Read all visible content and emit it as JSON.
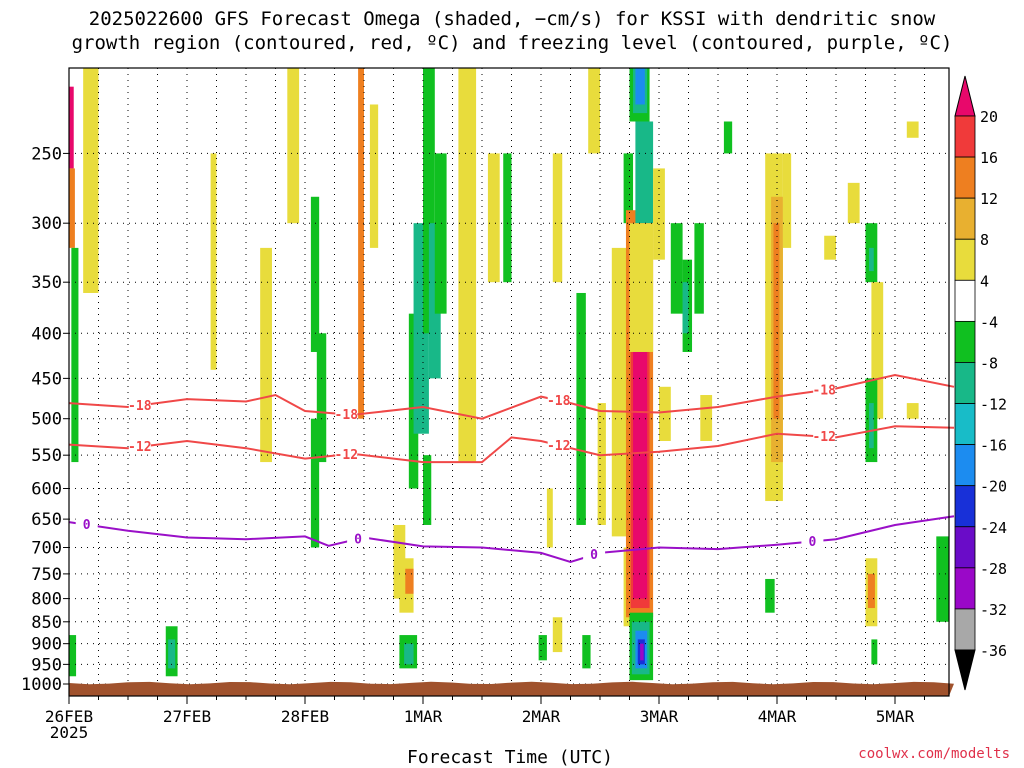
{
  "title": {
    "line1": "2025022600 GFS Forecast Omega (shaded, −cm/s) for KSSI with dendritic snow",
    "line2": "growth region (contoured, red, ºC) and freezing level (contoured, purple, ºC)"
  },
  "x_axis_label": "Forecast Time (UTC)",
  "credit": "coolwx.com/modelts",
  "chart_data": {
    "type": "heatmap",
    "x_start": "2025-02-26 00Z",
    "x_end": "2025-03-05 12Z",
    "x_ticks": [
      {
        "label": "26FEB",
        "sub": "2025",
        "day": 0
      },
      {
        "label": "27FEB",
        "day": 1
      },
      {
        "label": "28FEB",
        "day": 2
      },
      {
        "label": "1MAR",
        "day": 3
      },
      {
        "label": "2MAR",
        "day": 4
      },
      {
        "label": "3MAR",
        "day": 5
      },
      {
        "label": "4MAR",
        "day": 6
      },
      {
        "label": "5MAR",
        "day": 7
      }
    ],
    "y_axis": {
      "label_units": "hPa",
      "scale": "log-pressure",
      "ylim": [
        1000,
        200
      ],
      "ticks": [
        250,
        300,
        350,
        400,
        450,
        500,
        550,
        600,
        650,
        700,
        750,
        800,
        850,
        900,
        950,
        1000
      ]
    },
    "grid": "dotted",
    "colorbar": {
      "levels": [
        20,
        16,
        12,
        8,
        4,
        -4,
        -8,
        -12,
        -16,
        -20,
        -24,
        -28,
        -32,
        -36
      ],
      "colors": [
        "#e8086b",
        "#f03a3a",
        "#ee7f20",
        "#e8b030",
        "#e8dc3c",
        "#ffffff",
        "#10c020",
        "#18b888",
        "#18bcc8",
        "#1c8cf0",
        "#1830d8",
        "#6a0cc8",
        "#9a08c8",
        "#a8a8a8",
        "#000000"
      ]
    },
    "series": [
      {
        "name": "-18",
        "color": "#f04848",
        "kind": "dendritic-growth",
        "points": [
          [
            0,
            480
          ],
          [
            0.5,
            485
          ],
          [
            1,
            475
          ],
          [
            1.5,
            478
          ],
          [
            1.75,
            470
          ],
          [
            2,
            490
          ],
          [
            2.4,
            495
          ],
          [
            3,
            485
          ],
          [
            3.5,
            500
          ],
          [
            4,
            472
          ],
          [
            4.25,
            480
          ],
          [
            4.5,
            490
          ],
          [
            5,
            492
          ],
          [
            5.5,
            485
          ],
          [
            6,
            472
          ],
          [
            6.5,
            462
          ],
          [
            7,
            446
          ],
          [
            7.5,
            460
          ]
        ]
      },
      {
        "name": "-12",
        "color": "#f04848",
        "kind": "dendritic-growth",
        "points": [
          [
            0,
            535
          ],
          [
            0.5,
            540
          ],
          [
            1,
            530
          ],
          [
            1.5,
            540
          ],
          [
            2,
            555
          ],
          [
            2.4,
            548
          ],
          [
            3,
            560
          ],
          [
            3.5,
            560
          ],
          [
            3.75,
            525
          ],
          [
            4,
            530
          ],
          [
            4.5,
            550
          ],
          [
            5,
            545
          ],
          [
            5.5,
            537
          ],
          [
            6,
            520
          ],
          [
            6.5,
            525
          ],
          [
            7,
            510
          ],
          [
            7.5,
            512
          ]
        ]
      },
      {
        "name": "0",
        "color": "#9a10c8",
        "kind": "freezing-level",
        "points": [
          [
            0,
            655
          ],
          [
            0.5,
            670
          ],
          [
            1,
            682
          ],
          [
            1.5,
            685
          ],
          [
            2,
            680
          ],
          [
            2.2,
            697
          ],
          [
            2.5,
            682
          ],
          [
            3,
            698
          ],
          [
            3.5,
            700
          ],
          [
            4,
            710
          ],
          [
            4.25,
            727
          ],
          [
            4.5,
            710
          ],
          [
            5,
            700
          ],
          [
            5.5,
            703
          ],
          [
            6,
            695
          ],
          [
            6.5,
            685
          ],
          [
            7,
            660
          ],
          [
            7.5,
            645
          ]
        ]
      }
    ],
    "omega_cells": [
      {
        "t0": 0.0,
        "t1": 0.04,
        "p0": 210,
        "p1": 260,
        "c": "#e8086b"
      },
      {
        "t0": 0.0,
        "t1": 0.05,
        "p0": 260,
        "p1": 320,
        "c": "#ee7f20"
      },
      {
        "t0": 0.02,
        "t1": 0.08,
        "p0": 320,
        "p1": 560,
        "c": "#10c020"
      },
      {
        "t0": 0.0,
        "t1": 0.06,
        "p0": 880,
        "p1": 980,
        "c": "#10c020"
      },
      {
        "t0": 0.12,
        "t1": 0.25,
        "p0": 200,
        "p1": 360,
        "c": "#e8dc3c"
      },
      {
        "t0": 0.82,
        "t1": 0.92,
        "p0": 860,
        "p1": 980,
        "c": "#10c020"
      },
      {
        "t0": 0.84,
        "t1": 0.9,
        "p0": 890,
        "p1": 960,
        "c": "#18b888"
      },
      {
        "t0": 1.2,
        "t1": 1.25,
        "p0": 250,
        "p1": 440,
        "c": "#e8dc3c"
      },
      {
        "t0": 1.62,
        "t1": 1.72,
        "p0": 320,
        "p1": 560,
        "c": "#e8dc3c"
      },
      {
        "t0": 1.85,
        "t1": 1.95,
        "p0": 200,
        "p1": 300,
        "c": "#e8dc3c"
      },
      {
        "t0": 2.05,
        "t1": 2.12,
        "p0": 280,
        "p1": 420,
        "c": "#10c020"
      },
      {
        "t0": 2.05,
        "t1": 2.12,
        "p0": 500,
        "p1": 700,
        "c": "#10c020"
      },
      {
        "t0": 2.1,
        "t1": 2.18,
        "p0": 400,
        "p1": 560,
        "c": "#10c020"
      },
      {
        "t0": 2.45,
        "t1": 2.5,
        "p0": 200,
        "p1": 500,
        "c": "#ee7f20"
      },
      {
        "t0": 2.55,
        "t1": 2.62,
        "p0": 220,
        "p1": 320,
        "c": "#e8dc3c"
      },
      {
        "t0": 2.75,
        "t1": 2.85,
        "p0": 660,
        "p1": 800,
        "c": "#e8dc3c"
      },
      {
        "t0": 2.8,
        "t1": 2.92,
        "p0": 720,
        "p1": 830,
        "c": "#e8dc3c"
      },
      {
        "t0": 2.85,
        "t1": 2.92,
        "p0": 740,
        "p1": 790,
        "c": "#ee7f20"
      },
      {
        "t0": 2.8,
        "t1": 2.95,
        "p0": 880,
        "p1": 960,
        "c": "#10c020"
      },
      {
        "t0": 2.84,
        "t1": 2.92,
        "p0": 900,
        "p1": 950,
        "c": "#18b888"
      },
      {
        "t0": 2.88,
        "t1": 2.96,
        "p0": 380,
        "p1": 600,
        "c": "#10c020"
      },
      {
        "t0": 2.92,
        "t1": 3.05,
        "p0": 300,
        "p1": 520,
        "c": "#18b888"
      },
      {
        "t0": 3.0,
        "t1": 3.1,
        "p0": 200,
        "p1": 400,
        "c": "#10c020"
      },
      {
        "t0": 3.05,
        "t1": 3.15,
        "p0": 300,
        "p1": 450,
        "c": "#18b888"
      },
      {
        "t0": 3.1,
        "t1": 3.2,
        "p0": 250,
        "p1": 380,
        "c": "#10c020"
      },
      {
        "t0": 3.0,
        "t1": 3.07,
        "p0": 550,
        "p1": 660,
        "c": "#10c020"
      },
      {
        "t0": 3.3,
        "t1": 3.45,
        "p0": 200,
        "p1": 560,
        "c": "#e8dc3c"
      },
      {
        "t0": 3.55,
        "t1": 3.65,
        "p0": 250,
        "p1": 350,
        "c": "#e8dc3c"
      },
      {
        "t0": 3.68,
        "t1": 3.75,
        "p0": 250,
        "p1": 350,
        "c": "#10c020"
      },
      {
        "t0": 3.98,
        "t1": 4.05,
        "p0": 880,
        "p1": 940,
        "c": "#10c020"
      },
      {
        "t0": 4.05,
        "t1": 4.1,
        "p0": 600,
        "p1": 700,
        "c": "#e8dc3c"
      },
      {
        "t0": 4.1,
        "t1": 4.18,
        "p0": 250,
        "p1": 350,
        "c": "#e8dc3c"
      },
      {
        "t0": 4.1,
        "t1": 4.18,
        "p0": 840,
        "p1": 920,
        "c": "#e8dc3c"
      },
      {
        "t0": 4.3,
        "t1": 4.38,
        "p0": 360,
        "p1": 660,
        "c": "#10c020"
      },
      {
        "t0": 4.35,
        "t1": 4.42,
        "p0": 880,
        "p1": 960,
        "c": "#10c020"
      },
      {
        "t0": 4.4,
        "t1": 4.5,
        "p0": 200,
        "p1": 250,
        "c": "#e8dc3c"
      },
      {
        "t0": 4.48,
        "t1": 4.55,
        "p0": 480,
        "p1": 660,
        "c": "#e8dc3c"
      },
      {
        "t0": 4.65,
        "t1": 4.72,
        "p0": 330,
        "p1": 530,
        "c": "#10c020"
      },
      {
        "t0": 4.7,
        "t1": 4.78,
        "p0": 250,
        "p1": 300,
        "c": "#10c020"
      },
      {
        "t0": 4.6,
        "t1": 4.85,
        "p0": 320,
        "p1": 680,
        "c": "#e8dc3c"
      },
      {
        "t0": 4.7,
        "t1": 4.9,
        "p0": 700,
        "p1": 860,
        "c": "#e8dc3c"
      },
      {
        "t0": 4.72,
        "t1": 4.95,
        "p0": 290,
        "p1": 840,
        "c": "#ee7f20"
      },
      {
        "t0": 4.76,
        "t1": 4.92,
        "p0": 300,
        "p1": 820,
        "c": "#f03a3a"
      },
      {
        "t0": 4.78,
        "t1": 4.9,
        "p0": 320,
        "p1": 800,
        "c": "#e8086b"
      },
      {
        "t0": 4.75,
        "t1": 4.95,
        "p0": 830,
        "p1": 990,
        "c": "#10c020"
      },
      {
        "t0": 4.77,
        "t1": 4.92,
        "p0": 850,
        "p1": 975,
        "c": "#18b888"
      },
      {
        "t0": 4.8,
        "t1": 4.9,
        "p0": 870,
        "p1": 960,
        "c": "#1c8cf0"
      },
      {
        "t0": 4.82,
        "t1": 4.88,
        "p0": 890,
        "p1": 950,
        "c": "#1830d8"
      },
      {
        "t0": 4.84,
        "t1": 4.87,
        "p0": 900,
        "p1": 940,
        "c": "#9a08c8"
      },
      {
        "t0": 4.75,
        "t1": 4.92,
        "p0": 200,
        "p1": 230,
        "c": "#10c020"
      },
      {
        "t0": 4.78,
        "t1": 4.9,
        "p0": 200,
        "p1": 225,
        "c": "#18b888"
      },
      {
        "t0": 4.8,
        "t1": 4.88,
        "p0": 200,
        "p1": 220,
        "c": "#1c8cf0"
      },
      {
        "t0": 4.8,
        "t1": 4.95,
        "p0": 230,
        "p1": 300,
        "c": "#18b888"
      },
      {
        "t0": 4.75,
        "t1": 4.95,
        "p0": 300,
        "p1": 420,
        "c": "#e8dc3c"
      },
      {
        "t0": 4.95,
        "t1": 5.05,
        "p0": 260,
        "p1": 330,
        "c": "#e8dc3c"
      },
      {
        "t0": 5.0,
        "t1": 5.1,
        "p0": 460,
        "p1": 530,
        "c": "#e8dc3c"
      },
      {
        "t0": 5.1,
        "t1": 5.2,
        "p0": 300,
        "p1": 380,
        "c": "#10c020"
      },
      {
        "t0": 5.2,
        "t1": 5.28,
        "p0": 330,
        "p1": 420,
        "c": "#10c020"
      },
      {
        "t0": 5.2,
        "t1": 5.25,
        "p0": 350,
        "p1": 400,
        "c": "#18b888"
      },
      {
        "t0": 5.3,
        "t1": 5.38,
        "p0": 300,
        "p1": 380,
        "c": "#10c020"
      },
      {
        "t0": 5.35,
        "t1": 5.45,
        "p0": 470,
        "p1": 530,
        "c": "#e8dc3c"
      },
      {
        "t0": 5.9,
        "t1": 6.05,
        "p0": 250,
        "p1": 620,
        "c": "#e8dc3c"
      },
      {
        "t0": 5.95,
        "t1": 6.05,
        "p0": 280,
        "p1": 560,
        "c": "#e8b030"
      },
      {
        "t0": 5.97,
        "t1": 6.02,
        "p0": 300,
        "p1": 500,
        "c": "#ee7f20"
      },
      {
        "t0": 6.05,
        "t1": 6.12,
        "p0": 250,
        "p1": 320,
        "c": "#e8dc3c"
      },
      {
        "t0": 5.55,
        "t1": 5.62,
        "p0": 230,
        "p1": 250,
        "c": "#10c020"
      },
      {
        "t0": 5.9,
        "t1": 5.98,
        "p0": 760,
        "p1": 830,
        "c": "#10c020"
      },
      {
        "t0": 6.4,
        "t1": 6.5,
        "p0": 310,
        "p1": 330,
        "c": "#e8dc3c"
      },
      {
        "t0": 6.6,
        "t1": 6.7,
        "p0": 270,
        "p1": 300,
        "c": "#e8dc3c"
      },
      {
        "t0": 6.75,
        "t1": 6.85,
        "p0": 300,
        "p1": 350,
        "c": "#10c020"
      },
      {
        "t0": 6.78,
        "t1": 6.82,
        "p0": 320,
        "p1": 340,
        "c": "#18b888"
      },
      {
        "t0": 6.8,
        "t1": 6.9,
        "p0": 350,
        "p1": 500,
        "c": "#e8dc3c"
      },
      {
        "t0": 6.75,
        "t1": 6.85,
        "p0": 450,
        "p1": 560,
        "c": "#10c020"
      },
      {
        "t0": 6.78,
        "t1": 6.82,
        "p0": 480,
        "p1": 540,
        "c": "#18b888"
      },
      {
        "t0": 6.75,
        "t1": 6.85,
        "p0": 720,
        "p1": 860,
        "c": "#e8dc3c"
      },
      {
        "t0": 6.77,
        "t1": 6.83,
        "p0": 750,
        "p1": 820,
        "c": "#ee7f20"
      },
      {
        "t0": 6.8,
        "t1": 6.85,
        "p0": 890,
        "p1": 950,
        "c": "#10c020"
      },
      {
        "t0": 7.1,
        "t1": 7.2,
        "p0": 230,
        "p1": 240,
        "c": "#e8dc3c"
      },
      {
        "t0": 7.1,
        "t1": 7.2,
        "p0": 480,
        "p1": 500,
        "c": "#e8dc3c"
      },
      {
        "t0": 7.35,
        "t1": 7.5,
        "p0": 680,
        "p1": 850,
        "c": "#10c020"
      }
    ],
    "ground": {
      "p_top": 1000,
      "color": "#a0522d"
    }
  }
}
